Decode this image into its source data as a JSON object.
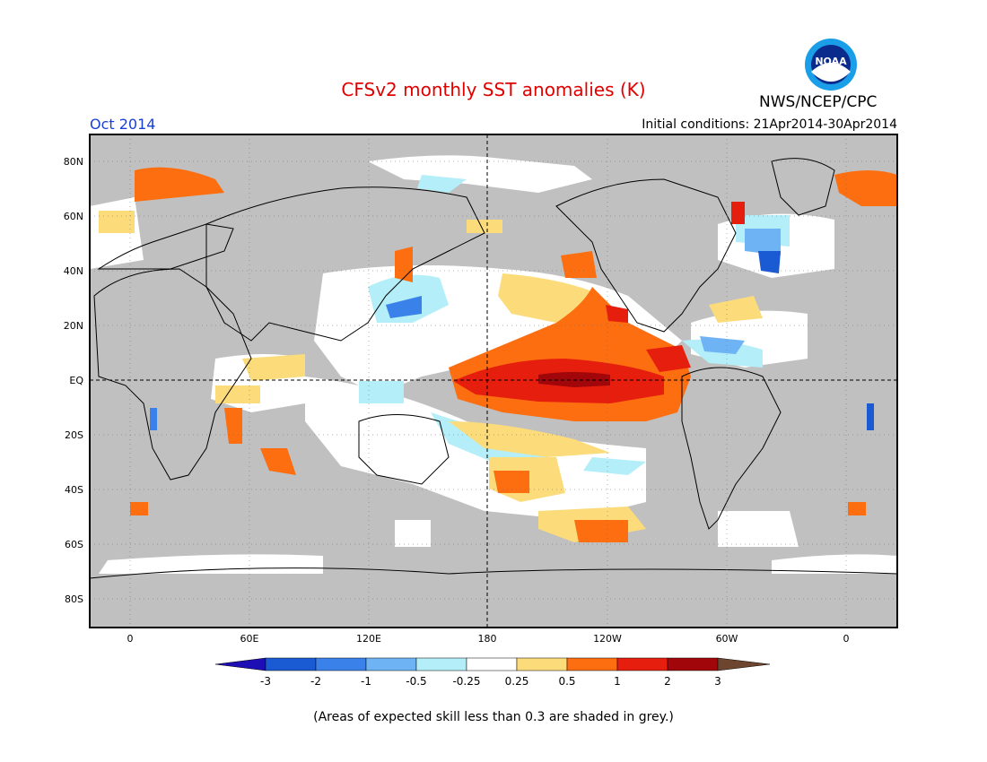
{
  "header": {
    "title": "CFSv2 monthly SST anomalies (K)",
    "org": "NWS/NCEP/CPC",
    "period": "Oct 2014",
    "initial_conditions": "Initial conditions: 21Apr2014-30Apr2014",
    "logo_text": "NOAA"
  },
  "map": {
    "lat_labels": [
      "80N",
      "60N",
      "40N",
      "20N",
      "EQ",
      "20S",
      "40S",
      "60S",
      "80S"
    ],
    "lon_labels": [
      "0",
      "60E",
      "120E",
      "180",
      "120W",
      "60W",
      "0"
    ],
    "skill_mask_color": "#c0c0c0",
    "equator_line": "dashed",
    "dateline": "dashed"
  },
  "colorbar": {
    "labels": [
      "-3",
      "-2",
      "-1",
      "-0.5",
      "-0.25",
      "0.25",
      "0.5",
      "1",
      "2",
      "3"
    ],
    "colors": [
      "#1e0fb4",
      "#1a5ad2",
      "#3a82ea",
      "#6eb4f4",
      "#b4eef8",
      "#ffffff",
      "#fcdc7a",
      "#fc6e10",
      "#e61e0e",
      "#a0060a",
      "#6e4630"
    ]
  },
  "footnote": "(Areas of expected skill less than 0.3 are shaded in grey.)"
}
